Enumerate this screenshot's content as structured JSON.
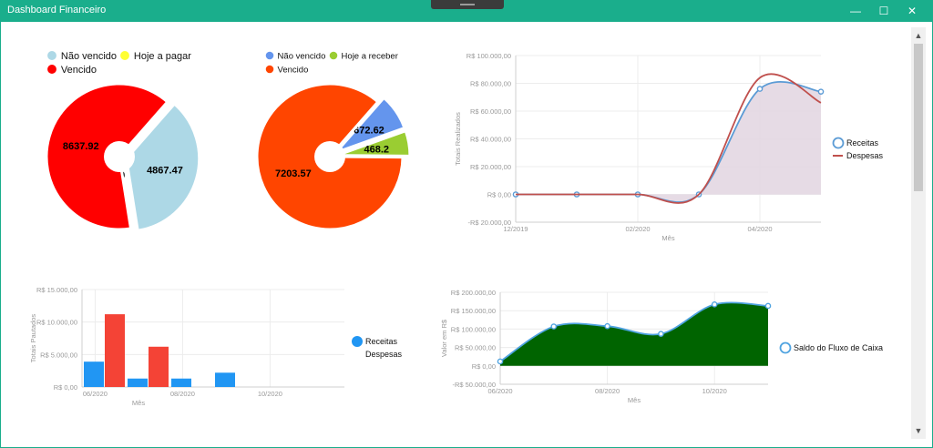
{
  "window": {
    "title": "Dashboard Financeiro",
    "minimize_glyph": "—",
    "maximize_glyph": "☐",
    "close_glyph": "✕"
  },
  "scrollbar": {
    "up_glyph": "▲",
    "down_glyph": "▼"
  },
  "colors": {
    "titlebar": "#1aae8c",
    "receitas": "#2196f3",
    "despesas": "#f44336",
    "fluxo": "#006400"
  },
  "chart_data": [
    {
      "type": "pie",
      "legend": [
        {
          "label": "Não vencido",
          "color": "#add8e6"
        },
        {
          "label": "Hoje a pagar",
          "color": "#ffff33"
        },
        {
          "label": "Vencido",
          "color": "#ff0000"
        }
      ],
      "slices": [
        {
          "label": "Não vencido",
          "value": 4867.47,
          "display": "4867.47",
          "color": "#add8e6"
        },
        {
          "label": "Hoje a pagar",
          "value": 0,
          "display": "0",
          "color": "#ffff33"
        },
        {
          "label": "Vencido",
          "value": 8637.92,
          "display": "8637.92",
          "color": "#ff0000"
        }
      ]
    },
    {
      "type": "pie",
      "legend": [
        {
          "label": "Não vencido",
          "color": "#6495ed"
        },
        {
          "label": "Hoje a receber",
          "color": "#9acd32"
        },
        {
          "label": "Vencido",
          "color": "#ff4500"
        }
      ],
      "slices": [
        {
          "label": "Não vencido",
          "value": 672.62,
          "display": "672.62",
          "color": "#6495ed"
        },
        {
          "label": "Hoje a receber",
          "value": 468.2,
          "display": "468.2",
          "color": "#9acd32"
        },
        {
          "label": "Vencido",
          "value": 7203.57,
          "display": "7203.57",
          "color": "#ff4500"
        }
      ]
    },
    {
      "type": "line",
      "xlabel": "Mês",
      "ylabel": "Totais Realizados",
      "ylim": [
        -20000,
        100000
      ],
      "yticks": [
        {
          "value": 100000,
          "label": "R$ 100.000,00"
        },
        {
          "value": 80000,
          "label": "R$ 80.000,00"
        },
        {
          "value": 60000,
          "label": "R$ 60.000,00"
        },
        {
          "value": 40000,
          "label": "R$ 40.000,00"
        },
        {
          "value": 20000,
          "label": "R$ 20.000,00"
        },
        {
          "value": 0,
          "label": "R$ 0,00"
        },
        {
          "value": -20000,
          "label": "-R$ 20.000,00"
        }
      ],
      "xticks": [
        {
          "index": 0,
          "label": "12/2019"
        },
        {
          "index": 2,
          "label": "02/2020"
        },
        {
          "index": 4,
          "label": "04/2020"
        }
      ],
      "x": [
        "12/2019",
        "01/2020",
        "02/2020",
        "03/2020",
        "04/2020",
        "05/2020"
      ],
      "series": [
        {
          "name": "Receitas",
          "values": [
            0,
            0,
            0,
            0,
            76000,
            74000
          ],
          "color": "#5b9bd5"
        },
        {
          "name": "Despesas",
          "values": [
            0,
            0,
            0,
            0,
            84000,
            66000
          ],
          "color": "#c0504d"
        }
      ],
      "legend": "right"
    },
    {
      "type": "bar",
      "xlabel": "Mês",
      "ylabel": "Totais Pautados",
      "ylim": [
        0,
        15000
      ],
      "yticks": [
        {
          "value": 15000,
          "label": "R$ 15.000,00"
        },
        {
          "value": 10000,
          "label": "R$ 10.000,00"
        },
        {
          "value": 5000,
          "label": "R$ 5.000,00"
        },
        {
          "value": 0,
          "label": "R$ 0,00"
        }
      ],
      "xticks": [
        {
          "index": 0,
          "label": "06/2020"
        },
        {
          "index": 2,
          "label": "08/2020"
        },
        {
          "index": 4,
          "label": "10/2020"
        }
      ],
      "categories": [
        "06/2020",
        "07/2020",
        "08/2020",
        "09/2020",
        "10/2020",
        "11/2020"
      ],
      "series": [
        {
          "name": "Receitas",
          "values": [
            3900,
            1300,
            1300,
            2200,
            0,
            0
          ],
          "color": "#2196f3"
        },
        {
          "name": "Despesas",
          "values": [
            11200,
            6200,
            0,
            0,
            0,
            0
          ],
          "color": "#f44336"
        }
      ],
      "legend": "right"
    },
    {
      "type": "area",
      "xlabel": "Mês",
      "ylabel": "Valor em R$",
      "ylim": [
        -50000,
        200000
      ],
      "yticks": [
        {
          "value": 200000,
          "label": "R$ 200.000,00"
        },
        {
          "value": 150000,
          "label": "R$ 150.000,00"
        },
        {
          "value": 100000,
          "label": "R$ 100.000,00"
        },
        {
          "value": 50000,
          "label": "R$ 50.000,00"
        },
        {
          "value": 0,
          "label": "R$ 0,00"
        },
        {
          "value": -50000,
          "label": "-R$ 50.000,00"
        }
      ],
      "xticks": [
        {
          "index": 0,
          "label": "06/2020"
        },
        {
          "index": 2,
          "label": "08/2020"
        },
        {
          "index": 4,
          "label": "10/2020"
        }
      ],
      "x": [
        "06/2020",
        "07/2020",
        "08/2020",
        "09/2020",
        "10/2020",
        "11/2020"
      ],
      "series": [
        {
          "name": "Saldo do Fluxo de Caixa",
          "values": [
            12000,
            107000,
            108000,
            87000,
            167000,
            163000
          ],
          "color": "#006400"
        }
      ],
      "legend": "right"
    }
  ]
}
